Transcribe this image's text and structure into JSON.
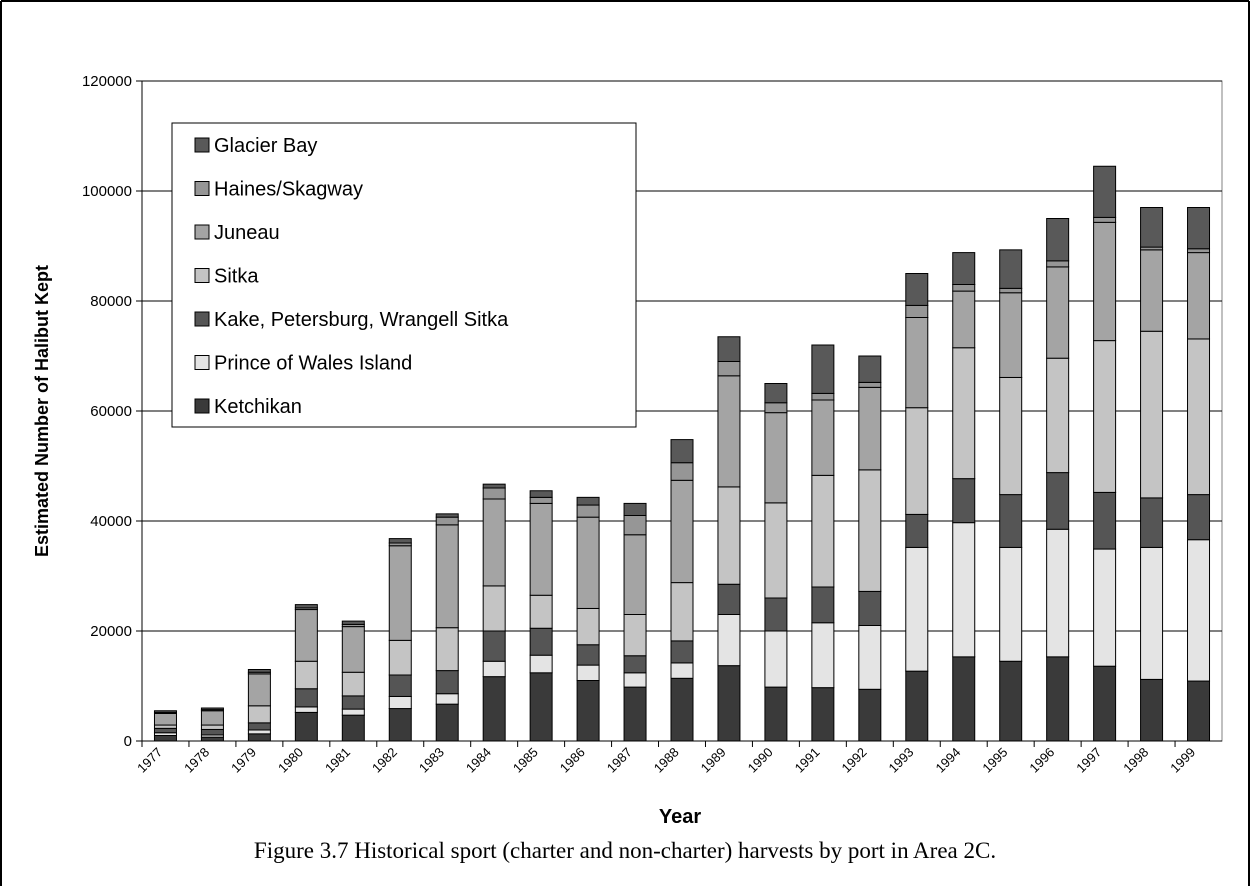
{
  "chart_data": {
    "type": "stacked_bar",
    "x_label": "Year",
    "y_label": "Estimated Number of Halibut Kept",
    "caption": "Figure 3.7  Historical sport (charter and non-charter) harvests by port in Area 2C.",
    "categories": [
      "1977",
      "1978",
      "1979",
      "1980",
      "1981",
      "1982",
      "1983",
      "1984",
      "1985",
      "1986",
      "1987",
      "1988",
      "1989",
      "1990",
      "1991",
      "1992",
      "1993",
      "1994",
      "1995",
      "1996",
      "1997",
      "1998",
      "1999"
    ],
    "series": [
      {
        "name": "Ketchikan",
        "color": "#3a3a3a",
        "values": [
          1000,
          700,
          1300,
          5200,
          4700,
          5900,
          6700,
          11700,
          12400,
          11000,
          9800,
          11400,
          13700,
          9800,
          9700,
          9400,
          12700,
          15300,
          14500,
          15300,
          13600,
          11200,
          10900
        ]
      },
      {
        "name": "Prince of Wales Island",
        "color": "#e4e4e4",
        "values": [
          500,
          400,
          700,
          1000,
          1100,
          2200,
          1900,
          2800,
          3200,
          2800,
          2600,
          2800,
          9300,
          10200,
          11800,
          11600,
          22500,
          24400,
          20700,
          23200,
          21300,
          24000,
          25700
        ]
      },
      {
        "name": "Kake, Petersburg, Wrangell Sitka",
        "color": "#555555",
        "values": [
          800,
          1000,
          1300,
          3300,
          2400,
          3900,
          4200,
          5500,
          4900,
          3700,
          3100,
          4000,
          5500,
          6000,
          6500,
          6200,
          6000,
          8000,
          9600,
          10300,
          10300,
          9000,
          8200
        ]
      },
      {
        "name": "Sitka",
        "color": "#c4c4c4",
        "values": [
          600,
          800,
          3100,
          5000,
          4300,
          6300,
          7800,
          8200,
          6000,
          6600,
          7500,
          10600,
          17700,
          17300,
          20300,
          22100,
          19400,
          23800,
          21300,
          20800,
          27600,
          30300,
          28300
        ]
      },
      {
        "name": "Juneau",
        "color": "#a4a4a4",
        "values": [
          2100,
          2600,
          5800,
          9400,
          8300,
          17200,
          18700,
          15800,
          16700,
          16600,
          14500,
          18600,
          20200,
          16400,
          13700,
          15000,
          16400,
          10300,
          15400,
          16600,
          21500,
          14800,
          15700
        ]
      },
      {
        "name": "Haines/Skagway",
        "color": "#969696",
        "values": [
          200,
          200,
          300,
          300,
          400,
          500,
          1400,
          2000,
          1100,
          2200,
          3500,
          3200,
          2600,
          1800,
          1200,
          900,
          2200,
          1200,
          800,
          1100,
          900,
          500,
          700
        ]
      },
      {
        "name": "Glacier Bay",
        "color": "#595959",
        "values": [
          300,
          300,
          500,
          600,
          600,
          800,
          600,
          700,
          1200,
          1400,
          2200,
          4200,
          4500,
          3500,
          8800,
          4800,
          5800,
          5800,
          7000,
          7700,
          9300,
          7200,
          7500
        ]
      }
    ],
    "ylim": [
      0,
      120000
    ],
    "yticks": [
      0,
      20000,
      40000,
      60000,
      80000,
      100000,
      120000
    ],
    "grid": true,
    "legend": "upper left"
  }
}
